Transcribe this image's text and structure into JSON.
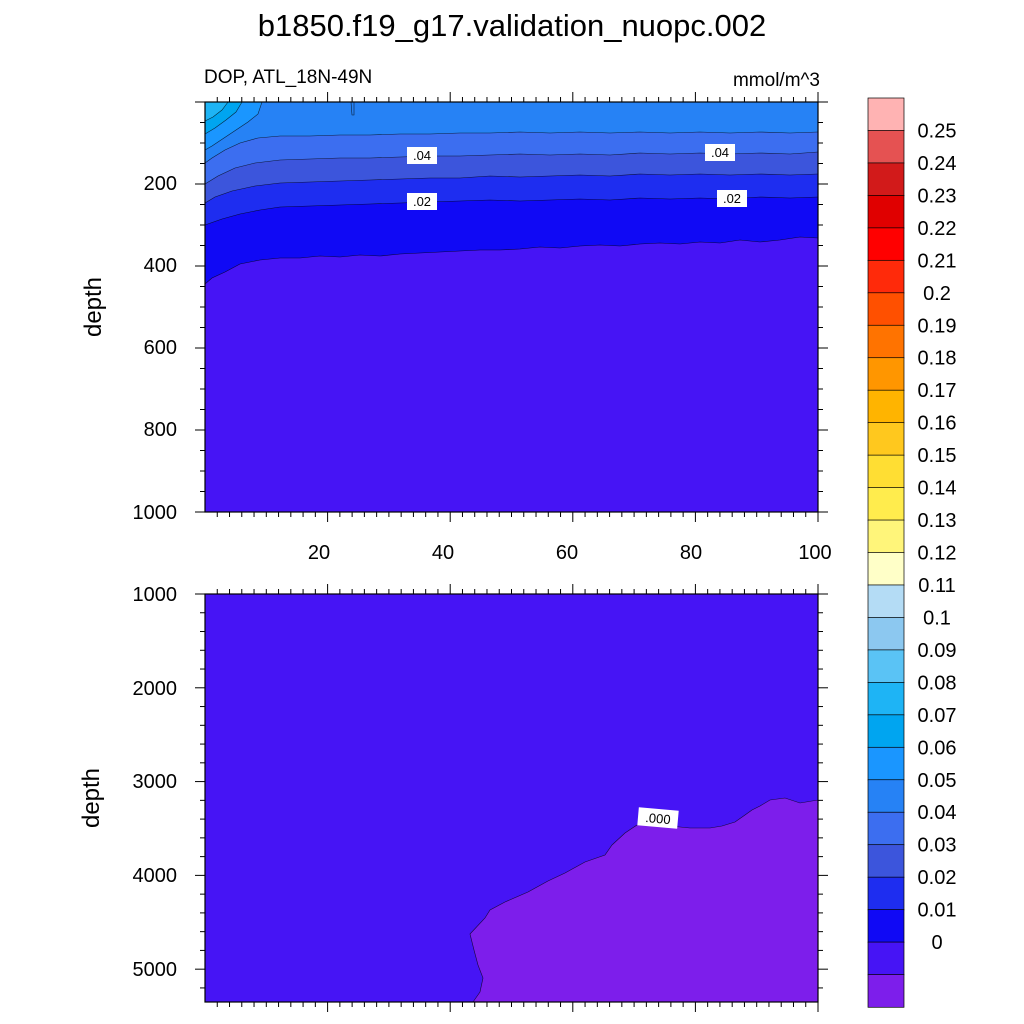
{
  "chart_data": {
    "type": "contour",
    "title": "b1850.f19_g17.validation_nuopc.002",
    "variable_label": "DOP, ATL_18N-49N",
    "units_label": "mmol/m^3",
    "colorbar": {
      "labels": [
        "0.25",
        "0.24",
        "0.23",
        "0.22",
        "0.21",
        "0.2",
        "0.19",
        "0.18",
        "0.17",
        "0.16",
        "0.15",
        "0.14",
        "0.13",
        "0.12",
        "0.11",
        "0.1",
        "0.09",
        "0.08",
        "0.07",
        "0.06",
        "0.05",
        "0.04",
        "0.03",
        "0.02",
        "0.01",
        "0"
      ],
      "colors": [
        "#ffb3b3",
        "#e55252",
        "#d21a1a",
        "#e00000",
        "#ff0000",
        "#ff2a0a",
        "#ff5000",
        "#ff7300",
        "#ff9600",
        "#ffb400",
        "#ffc81e",
        "#ffde33",
        "#ffec4d",
        "#fff57a",
        "#ffffc8",
        "#b4dcf5",
        "#8cc8f0",
        "#5ac3f5",
        "#1eb4f5",
        "#00a5f0",
        "#1a96ff",
        "#2682f5",
        "#3c6ef0",
        "#3c55dc",
        "#1e2df0",
        "#1009f5",
        "#4614f5",
        "#7d1eeb"
      ]
    },
    "panels": [
      {
        "name": "upper",
        "ylabel": "depth",
        "xlim": [
          0,
          100
        ],
        "ylim": [
          1000,
          0
        ],
        "x_ticks": [
          "20",
          "40",
          "60",
          "80",
          "100"
        ],
        "y_ticks": [
          "200",
          "400",
          "600",
          "800",
          "1000"
        ],
        "contour_labels": [
          ".04",
          ".04",
          ".02",
          ".02"
        ]
      },
      {
        "name": "lower",
        "ylabel": "depth",
        "xlim": [
          0,
          100
        ],
        "ylim": [
          5350,
          1000
        ],
        "x_ticks": [],
        "y_ticks": [
          "1000",
          "2000",
          "3000",
          "4000",
          "5000"
        ],
        "contour_labels": [
          ".000"
        ]
      }
    ]
  }
}
